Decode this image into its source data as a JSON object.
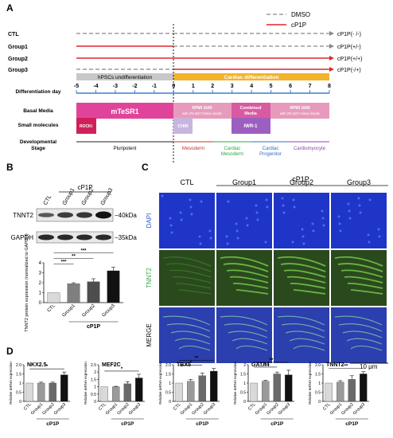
{
  "panels": {
    "A": "A",
    "B": "B",
    "C": "C",
    "D": "D"
  },
  "timeline": {
    "legend": {
      "dmso": "DMSO",
      "cp1p": "cP1P"
    },
    "colors": {
      "dmso": "#888888",
      "cp1p": "#e0262b",
      "undiff": "#c8c8c8",
      "cardiac": "#f2b42a",
      "mtesr": "#e0449a",
      "rpmi": "#e79bbc",
      "combined": "#d85aa2",
      "rock": "#d0205a",
      "chir": "#c8b5df",
      "iwr": "#9b5fc0",
      "axis": "#3b7fd0"
    },
    "groups": [
      {
        "name": "CTL",
        "label": "cP1P(- /-)"
      },
      {
        "name": "Group1",
        "label": "cP1P(+/-)"
      },
      {
        "name": "Group2",
        "label": "cP1P(+/+)"
      },
      {
        "name": "Group3",
        "label": "cP1P(-/+)"
      }
    ],
    "phase_undiff": "hPSCs undifferentiation",
    "phase_cardiac": "Cardiac differentiation",
    "row_labels": {
      "day": "Differentiation day",
      "media": "Basal Media",
      "small": "Small molecules",
      "stage": "Developmental Stage"
    },
    "days": [
      "-5",
      "-4",
      "-3",
      "-2",
      "-1",
      "0",
      "1",
      "2",
      "3",
      "4",
      "5",
      "6",
      "7",
      "8"
    ],
    "media": {
      "mtesr": "mTeSR1",
      "rpmi1_a": "RPMI 1640",
      "rpmi1_b": "with 2% B27 minus insulin",
      "combined_a": "Combined",
      "combined_b": "Media",
      "rpmi2_a": "RPMI 1640",
      "rpmi2_b": "with 2% B27 minus insulin"
    },
    "molecules": {
      "rock": "ROCKi",
      "chir": "CHIR",
      "iwr": "IWR-1"
    },
    "stages": [
      {
        "name": "Pluripotent",
        "color": "#222222"
      },
      {
        "name": "Mesoderm",
        "color": "#c0392b"
      },
      {
        "name_a": "Cardiac",
        "name_b": "Mesoderm",
        "color": "#27a844"
      },
      {
        "name_a": "Cardiac",
        "name_b": "Progenitor",
        "color": "#2d6fc4"
      },
      {
        "name": "Cardiomyocyte",
        "color": "#8e44ad"
      }
    ]
  },
  "western": {
    "cp1p": "cP1P",
    "lanes": [
      "CTL",
      "Group1",
      "Group2",
      "Group3"
    ],
    "rows": [
      {
        "protein": "TNNT2",
        "size": "40kDa"
      },
      {
        "protein": "GAPDH",
        "size": "35kDa"
      }
    ],
    "chart_data": {
      "type": "bar",
      "categories": [
        "CTL",
        "Group1",
        "Group2",
        "Group3"
      ],
      "values": [
        1.0,
        1.9,
        2.1,
        3.2
      ],
      "errors": [
        0.0,
        0.1,
        0.3,
        0.35
      ],
      "ylabel": "TNNT2 protein expression (normalized to GAPDH)",
      "ylim": [
        0,
        4
      ],
      "yticks": [
        "0",
        "1",
        "2",
        "3",
        "4"
      ],
      "xgroup": "cP1P",
      "colors": [
        "#d9d9d9",
        "#7f7f7f",
        "#4d4d4d",
        "#111111"
      ],
      "sig": [
        {
          "from": 0,
          "to": 1,
          "label": "***"
        },
        {
          "from": 0,
          "to": 2,
          "label": "**"
        },
        {
          "from": 0,
          "to": 3,
          "label": "***"
        }
      ]
    }
  },
  "imaging": {
    "cp1p": "cP1P",
    "columns": [
      "CTL",
      "Group1",
      "Group2",
      "Group3"
    ],
    "rows": [
      {
        "label": "DAPI",
        "color": "#2e5bd1"
      },
      {
        "label": "TNNT2",
        "color": "#3aa845"
      },
      {
        "label": "MERGE",
        "color": "#111111"
      }
    ],
    "scale": "10 μm"
  },
  "qpcr": {
    "chart_data": [
      {
        "type": "bar",
        "title": "NKX2.5",
        "ylabel": "Relative mRNA expression",
        "categories": [
          "CTL",
          "Group1",
          "Group2",
          "Group3"
        ],
        "values": [
          1.0,
          1.0,
          1.0,
          1.45
        ],
        "errors": [
          0.0,
          0.05,
          0.05,
          0.15
        ],
        "ylim": [
          0,
          2.0
        ],
        "yticks": [
          "0",
          "0.5",
          "1",
          "1.5",
          "2.0"
        ],
        "xgroup": "cP1P",
        "sig": [
          {
            "from": 0,
            "to": 3,
            "label": "*"
          }
        ]
      },
      {
        "type": "bar",
        "title": "MEF2C",
        "ylabel": "Relative mRNA expression",
        "categories": [
          "CTL",
          "Group1",
          "Group2",
          "Group3"
        ],
        "values": [
          1.0,
          1.0,
          1.2,
          1.6
        ],
        "errors": [
          0.0,
          0.03,
          0.15,
          0.25
        ],
        "ylim": [
          0,
          2.5
        ],
        "yticks": [
          "0",
          "0.5",
          "1",
          "1.5",
          "2",
          "2.5"
        ],
        "xgroup": "cP1P",
        "sig": [
          {
            "from": 0,
            "to": 3,
            "label": "*"
          }
        ]
      },
      {
        "type": "bar",
        "title": "TBX5",
        "ylabel": "Relative mRNA expression",
        "categories": [
          "CTL",
          "Group1",
          "Group2",
          "Group3"
        ],
        "values": [
          1.0,
          1.1,
          1.4,
          1.65
        ],
        "errors": [
          0.0,
          0.1,
          0.15,
          0.15
        ],
        "ylim": [
          0,
          2.0
        ],
        "yticks": [
          "0",
          "0.5",
          "1",
          "1.5",
          "2.0"
        ],
        "xgroup": "cP1P",
        "sig": [
          {
            "from": 0,
            "to": 2,
            "label": "*"
          },
          {
            "from": 0,
            "to": 3,
            "label": "**"
          }
        ]
      },
      {
        "type": "bar",
        "title": "GATA4",
        "ylabel": "Relative mRNA expression",
        "categories": [
          "CTL",
          "Group1",
          "Group2",
          "Group3"
        ],
        "values": [
          1.0,
          1.1,
          1.5,
          1.45
        ],
        "errors": [
          0.0,
          0.05,
          0.1,
          0.25
        ],
        "ylim": [
          0,
          2.0
        ],
        "yticks": [
          "0",
          "0.5",
          "1",
          "1.5",
          "2"
        ],
        "xgroup": "cP1P",
        "sig": [
          {
            "from": 0,
            "to": 2,
            "label": "*"
          },
          {
            "from": 0,
            "to": 3,
            "label": "**"
          }
        ]
      },
      {
        "type": "bar",
        "title": "TNNT2",
        "ylabel": "Relative mRNA expression",
        "categories": [
          "CTL",
          "Group1",
          "Group2",
          "Group3"
        ],
        "values": [
          1.0,
          1.05,
          1.2,
          1.5
        ],
        "errors": [
          0.0,
          0.08,
          0.2,
          0.12
        ],
        "ylim": [
          0,
          2.0
        ],
        "yticks": [
          "0",
          "0.5",
          "1",
          "1.5",
          "2.0"
        ],
        "xgroup": "cP1P",
        "sig": [
          {
            "from": 0,
            "to": 3,
            "label": "**"
          }
        ]
      }
    ],
    "colors": [
      "#d9d9d9",
      "#9a9a9a",
      "#6a6a6a",
      "#111111"
    ]
  }
}
